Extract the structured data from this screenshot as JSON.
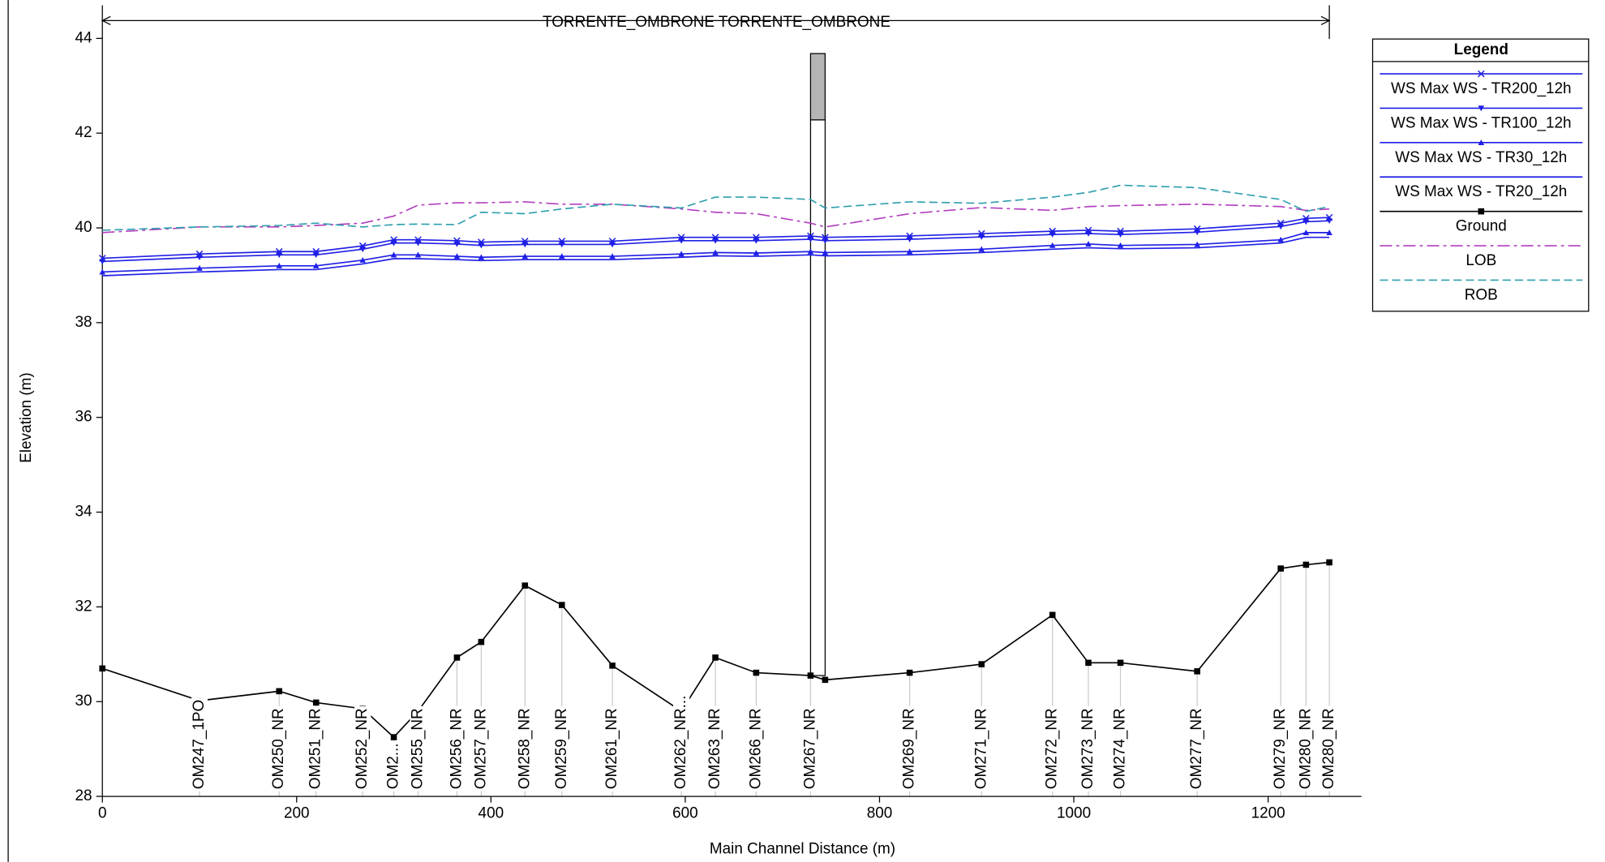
{
  "chart_data": {
    "type": "line",
    "title": "TORRENTE_OMBRONE TORRENTE_OMBRONE",
    "x_label": "Main Channel Distance (m)",
    "y_label": "Elevation (m)",
    "legend_title": "Legend",
    "legend_position": "right",
    "x": [
      0,
      100,
      182,
      220,
      268,
      300,
      325,
      365,
      390,
      435,
      473,
      525,
      596,
      631,
      673,
      729,
      744,
      831,
      905,
      978,
      1015,
      1048,
      1127,
      1213,
      1239,
      1263
    ],
    "station_labels": [
      null,
      "OM247_1PO",
      "OM250_NR",
      "OM251_NR",
      "OM252_NR",
      "OM2...",
      "OM255_NR",
      "OM256_NR",
      "OM257_NR",
      "OM258_NR",
      "OM259_NR",
      "OM261_NR",
      "OM262_NR...",
      "OM263_NR",
      "OM266_NR",
      "OM267_NR",
      null,
      "OM269_NR",
      "OM271_NR",
      "OM272_NR",
      "OM273_NR",
      "OM274_NR",
      "OM277_NR",
      "OM279_NR",
      "OM280_NR",
      "OM280_NR"
    ],
    "series": [
      {
        "name": "WS  Max WS - TR200_12h",
        "color": "#1f1fe6",
        "marker": "x",
        "dash": "solid",
        "values": [
          39.36,
          39.45,
          39.5,
          39.5,
          39.62,
          39.75,
          39.75,
          39.73,
          39.7,
          39.72,
          39.72,
          39.72,
          39.8,
          39.8,
          39.8,
          39.83,
          39.8,
          39.83,
          39.88,
          39.93,
          39.95,
          39.93,
          39.98,
          40.1,
          40.2,
          40.22
        ]
      },
      {
        "name": "WS  Max WS - TR100_12h",
        "color": "#1f1fe6",
        "marker": "tri-down",
        "dash": "solid",
        "values": [
          39.29,
          39.38,
          39.43,
          39.43,
          39.55,
          39.68,
          39.68,
          39.66,
          39.63,
          39.65,
          39.65,
          39.65,
          39.73,
          39.73,
          39.73,
          39.76,
          39.73,
          39.76,
          39.81,
          39.86,
          39.88,
          39.86,
          39.91,
          40.03,
          40.13,
          40.15
        ]
      },
      {
        "name": "WS  Max WS - TR30_12h",
        "color": "#1f1fe6",
        "marker": "tri-up",
        "dash": "solid",
        "values": [
          39.07,
          39.15,
          39.2,
          39.2,
          39.32,
          39.43,
          39.43,
          39.4,
          39.38,
          39.4,
          39.4,
          39.4,
          39.45,
          39.48,
          39.47,
          39.5,
          39.48,
          39.5,
          39.55,
          39.63,
          39.66,
          39.63,
          39.65,
          39.75,
          39.9,
          39.9
        ]
      },
      {
        "name": "WS  Max WS - TR20_12h",
        "color": "#1f1fe6",
        "marker": "none",
        "dash": "solid",
        "values": [
          38.99,
          39.07,
          39.12,
          39.12,
          39.24,
          39.35,
          39.35,
          39.33,
          39.31,
          39.33,
          39.33,
          39.33,
          39.38,
          39.41,
          39.4,
          39.43,
          39.41,
          39.43,
          39.48,
          39.55,
          39.58,
          39.56,
          39.58,
          39.68,
          39.8,
          39.8
        ]
      },
      {
        "name": "Ground",
        "color": "#000000",
        "marker": "square",
        "dash": "solid",
        "values": [
          30.7,
          30.02,
          30.22,
          29.98,
          29.85,
          29.25,
          29.8,
          30.93,
          31.26,
          32.45,
          32.04,
          30.76,
          29.8,
          30.93,
          30.61,
          30.55,
          30.46,
          30.61,
          30.79,
          31.83,
          30.82,
          30.82,
          30.64,
          32.81,
          32.89,
          32.94
        ]
      },
      {
        "name": "LOB",
        "color": "#b23fbf",
        "marker": "none",
        "dash": "dashdot",
        "values": [
          39.9,
          40.02,
          40.02,
          40.05,
          40.1,
          40.25,
          40.48,
          40.53,
          40.53,
          40.55,
          40.5,
          40.5,
          40.4,
          40.33,
          40.3,
          40.1,
          40.02,
          40.3,
          40.43,
          40.37,
          40.45,
          40.47,
          40.5,
          40.45,
          40.37,
          40.4
        ]
      },
      {
        "name": "ROB",
        "color": "#2e9fae",
        "marker": "none",
        "dash": "dash",
        "values": [
          39.95,
          40.02,
          40.05,
          40.1,
          40.02,
          40.07,
          40.08,
          40.07,
          40.33,
          40.3,
          40.4,
          40.5,
          40.42,
          40.65,
          40.65,
          40.6,
          40.42,
          40.55,
          40.52,
          40.65,
          40.75,
          40.9,
          40.85,
          40.6,
          40.35,
          40.45
        ]
      }
    ],
    "bridge": {
      "x": [
        729,
        744
      ],
      "top": 43.68,
      "deck_bottom": 42.28
    },
    "xlim": [
      0,
      1296
    ],
    "ylim": [
      28,
      44.7
    ],
    "xticks": [
      0,
      200,
      400,
      600,
      800,
      1000,
      1200
    ],
    "yticks": [
      28,
      30,
      32,
      34,
      36,
      38,
      40,
      42,
      44
    ]
  }
}
